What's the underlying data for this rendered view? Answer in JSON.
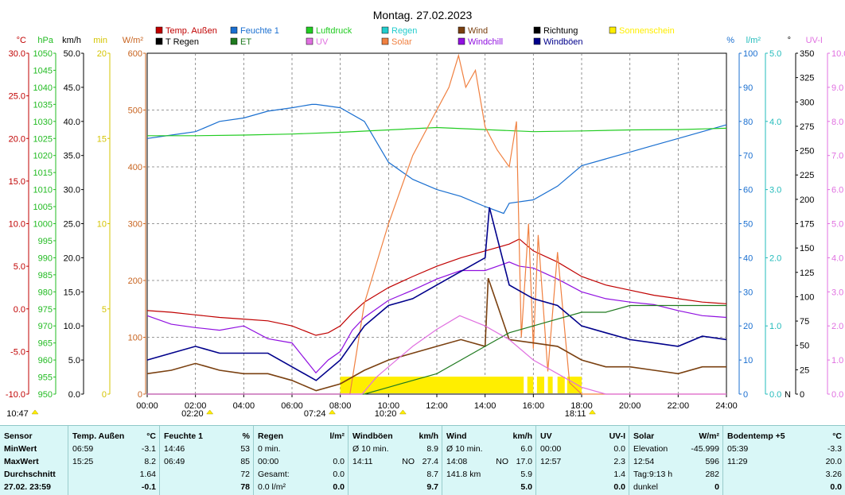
{
  "chart_data": {
    "type": "line",
    "title": "Montag. 27.02.2023",
    "x_ticks": [
      "00:00",
      "02:00",
      "04:00",
      "06:00",
      "08:00",
      "10:00",
      "12:00",
      "14:00",
      "16:00",
      "18:00",
      "20:00",
      "22:00",
      "24:00"
    ],
    "x_range": [
      0,
      24
    ],
    "legend": [
      {
        "label": "Temp. Außen",
        "color": "#c00000"
      },
      {
        "label": "Feuchte 1",
        "color": "#1a6fd0"
      },
      {
        "label": "Luftdruck",
        "color": "#22cc22"
      },
      {
        "label": "Regen",
        "color": "#22cccc"
      },
      {
        "label": "Wind",
        "color": "#7a4010"
      },
      {
        "label": "Richtung",
        "color": "#000000"
      },
      {
        "label": "Sonnenschein",
        "color": "#ffee00"
      },
      {
        "label": "T Regen",
        "color": "#000000"
      },
      {
        "label": "ET",
        "color": "#1f7a1f"
      },
      {
        "label": "UV",
        "color": "#e070e0"
      },
      {
        "label": "Solar",
        "color": "#f08040"
      },
      {
        "label": "Windchill",
        "color": "#9010e0"
      },
      {
        "label": "Windböen",
        "color": "#00008b"
      }
    ],
    "axes": [
      {
        "unit": "°C",
        "color": "#c00000",
        "side": "left",
        "ticks": [
          "30.0",
          "25.0",
          "20.0",
          "15.0",
          "10.0",
          "5.0",
          "0.0",
          "-5.0",
          "-10.0"
        ]
      },
      {
        "unit": "hPa",
        "color": "#22bb22",
        "side": "left",
        "ticks": [
          "1050",
          "1045",
          "1040",
          "1035",
          "1030",
          "1025",
          "1020",
          "1015",
          "1010",
          "1005",
          "1000",
          "995",
          "990",
          "985",
          "980",
          "975",
          "970",
          "965",
          "960",
          "955",
          "950"
        ]
      },
      {
        "unit": "km/h",
        "color": "#000000",
        "side": "left",
        "ticks": [
          "50.0",
          "45.0",
          "40.0",
          "35.0",
          "30.0",
          "25.0",
          "20.0",
          "15.0",
          "10.0",
          "5.0",
          "0.0"
        ]
      },
      {
        "unit": "min",
        "color": "#d4c400",
        "side": "left",
        "ticks": [
          "20",
          "15",
          "10",
          "5",
          "0"
        ]
      },
      {
        "unit": "W/m²",
        "color": "#c86420",
        "side": "left",
        "ticks": [
          "600",
          "500",
          "400",
          "300",
          "200",
          "100",
          "0"
        ]
      },
      {
        "unit": "%",
        "color": "#1a6fd0",
        "side": "right",
        "ticks": [
          "100",
          "90",
          "80",
          "70",
          "60",
          "50",
          "40",
          "30",
          "20",
          "10",
          "0"
        ]
      },
      {
        "unit": "l/m²",
        "color": "#22bbbb",
        "side": "right",
        "ticks": [
          "5.0",
          "4.0",
          "3.0",
          "2.0",
          "1.0",
          "0.0"
        ]
      },
      {
        "unit": "°",
        "color": "#000000",
        "side": "right",
        "ticks": [
          "350",
          "325",
          "300",
          "275",
          "250",
          "225",
          "200",
          "175",
          "150",
          "125",
          "100",
          "75",
          "50",
          "25",
          "0"
        ],
        "zero_label": "N"
      },
      {
        "unit": "UV-I",
        "color": "#e070e0",
        "side": "right",
        "ticks": [
          "10.0",
          "9.0",
          "8.0",
          "7.0",
          "6.0",
          "5.0",
          "4.0",
          "3.0",
          "2.0",
          "1.0",
          "0.0"
        ]
      }
    ],
    "series": [
      {
        "name": "Temp. Außen",
        "color": "#c00000",
        "x": [
          0,
          1,
          2,
          3,
          4,
          5,
          6,
          6.99,
          7.5,
          8,
          8.5,
          9,
          10,
          11,
          12,
          13,
          14,
          15,
          15.42,
          16,
          17,
          18,
          19,
          20,
          21,
          22,
          23,
          24
        ],
        "y": [
          -0.2,
          -0.4,
          -0.7,
          -1.0,
          -1.2,
          -1.4,
          -2.0,
          -3.1,
          -2.8,
          -2.0,
          -0.5,
          0.8,
          2.5,
          3.8,
          5.0,
          6.0,
          6.8,
          7.6,
          8.2,
          6.8,
          5.5,
          3.8,
          2.8,
          2.2,
          1.6,
          1.2,
          0.8,
          0.6
        ]
      },
      {
        "name": "Windchill",
        "color": "#9010e0",
        "x": [
          0,
          1,
          2,
          3,
          4,
          5,
          6,
          6.99,
          7.5,
          8,
          8.5,
          9,
          10,
          11,
          12,
          13,
          14,
          15,
          15.42,
          16,
          17,
          18,
          19,
          20,
          21,
          22,
          23,
          24
        ],
        "y": [
          -0.8,
          -1.8,
          -2.2,
          -2.5,
          -2.0,
          -3.5,
          -4.0,
          -7.5,
          -6.0,
          -5.0,
          -2.5,
          -1.0,
          1.0,
          2.2,
          3.5,
          4.5,
          4.5,
          5.5,
          5.0,
          4.8,
          3.5,
          2.0,
          1.2,
          0.8,
          0.5,
          -0.2,
          -0.8,
          -1.0
        ]
      },
      {
        "name": "Feuchte 1",
        "color": "#1a6fd0",
        "x": [
          0,
          1,
          2,
          3,
          4,
          5,
          6,
          6.82,
          7,
          8,
          9,
          10,
          11,
          12,
          13,
          14,
          14.77,
          15,
          16,
          17,
          18,
          19,
          20,
          21,
          22,
          23,
          24
        ],
        "y": [
          75,
          76,
          77,
          80,
          81,
          83,
          84,
          85,
          85,
          84,
          80,
          68,
          63,
          60,
          58,
          55,
          53,
          56,
          57,
          61,
          67,
          69,
          71,
          73,
          75,
          77,
          79
        ]
      },
      {
        "name": "Luftdruck",
        "color": "#22cc22",
        "x": [
          0,
          2,
          4,
          6,
          8,
          10,
          12,
          14,
          16,
          18,
          20,
          22,
          24
        ],
        "y": [
          1025.8,
          1025.8,
          1026.0,
          1026.3,
          1026.8,
          1027.5,
          1028.2,
          1027.6,
          1027.0,
          1027.2,
          1027.5,
          1027.6,
          1028.0
        ]
      },
      {
        "name": "Solar",
        "color": "#f08040",
        "x": [
          0,
          8.4,
          9,
          10,
          11,
          11.5,
          12,
          12.5,
          12.9,
          13.2,
          13.6,
          14,
          14.5,
          15,
          15.3,
          15.5,
          15.8,
          16,
          16.2,
          16.6,
          17,
          17.5,
          18,
          18.5,
          24
        ],
        "y": [
          0,
          0,
          160,
          300,
          420,
          460,
          500,
          540,
          596,
          540,
          570,
          470,
          430,
          400,
          480,
          100,
          300,
          80,
          280,
          40,
          250,
          20,
          0,
          0,
          0
        ]
      },
      {
        "name": "Wind",
        "color": "#7a4010",
        "x": [
          0,
          1,
          2,
          3,
          4,
          5,
          6,
          7,
          8,
          9,
          10,
          11,
          12,
          13,
          14,
          14.13,
          15,
          16,
          17,
          18,
          19,
          20,
          21,
          22,
          23,
          24
        ],
        "y": [
          3.0,
          3.5,
          4.5,
          3.5,
          3.0,
          3.0,
          2.0,
          0.5,
          1.5,
          3.5,
          5.0,
          6.0,
          7.0,
          8.0,
          7.0,
          17.0,
          8.0,
          7.5,
          7.0,
          5.0,
          4.0,
          4.0,
          3.5,
          3.0,
          4.0,
          4.0
        ]
      },
      {
        "name": "Windböen",
        "color": "#00008b",
        "x": [
          0,
          1,
          2,
          3,
          4,
          5,
          6,
          7,
          8,
          9,
          10,
          11,
          12,
          13,
          14,
          14.18,
          15,
          16,
          17,
          18,
          19,
          20,
          21,
          22,
          23,
          24
        ],
        "y": [
          5.0,
          6.0,
          7.0,
          6.0,
          6.0,
          6.0,
          4.0,
          2.0,
          5.0,
          10.0,
          13.0,
          14.0,
          16.0,
          18.0,
          20.0,
          27.4,
          16.0,
          14.0,
          13.0,
          10.0,
          9.0,
          8.0,
          7.5,
          7.0,
          8.5,
          8.0
        ]
      },
      {
        "name": "ET",
        "color": "#1f7a1f",
        "x": [
          0,
          9,
          10,
          11,
          12,
          13,
          14,
          15,
          16,
          17,
          18,
          19,
          20,
          21,
          22,
          23,
          24
        ],
        "y": [
          0.0,
          0.0,
          0.1,
          0.2,
          0.3,
          0.5,
          0.7,
          0.9,
          1.0,
          1.1,
          1.2,
          1.2,
          1.3,
          1.3,
          1.3,
          1.3,
          1.3
        ]
      },
      {
        "name": "UV",
        "color": "#e070e0",
        "x": [
          0,
          8.9,
          9.5,
          10,
          11,
          12,
          12.95,
          14,
          15,
          16,
          17,
          18,
          19,
          24
        ],
        "y": [
          0,
          0,
          0.5,
          0.8,
          1.4,
          1.9,
          2.3,
          2.0,
          1.6,
          1.0,
          0.6,
          0.2,
          0,
          0
        ]
      }
    ],
    "sunshine_blocks": [
      [
        8.0,
        15.6
      ],
      [
        15.75,
        16.0
      ],
      [
        16.15,
        16.45
      ],
      [
        16.6,
        16.8
      ],
      [
        17.0,
        17.3
      ],
      [
        17.4,
        18.0
      ]
    ],
    "markers": [
      {
        "label": "10:47",
        "time": 10.78
      },
      {
        "label": "02:20",
        "time": 2.33
      },
      {
        "label": "07:24",
        "time": 7.4
      },
      {
        "label": "10:20",
        "time": 10.33
      },
      {
        "label": "18:11",
        "time": 18.18
      }
    ]
  },
  "stats": {
    "sensor": {
      "header": "Sensor",
      "rows": [
        "MinWert",
        "MaxWert",
        "Durchschnitt",
        "27.02. 23:59"
      ]
    },
    "temp": {
      "header": "Temp. Außen",
      "unit": "°C",
      "rows": [
        [
          "06:59",
          "-3.1"
        ],
        [
          "15:25",
          "8.2"
        ],
        [
          "",
          "1.64"
        ],
        [
          "",
          "-0.1"
        ]
      ]
    },
    "feuchte": {
      "header": "Feuchte 1",
      "unit": "%",
      "rows": [
        [
          "14:46",
          "53"
        ],
        [
          "06:49",
          "85"
        ],
        [
          "",
          "72"
        ],
        [
          "",
          "78"
        ]
      ]
    },
    "regen": {
      "header": "Regen",
      "unit": "l/m²",
      "rows": [
        [
          "0 min.",
          ""
        ],
        [
          "00:00",
          "0.0"
        ],
        [
          "Gesamt:",
          "0.0"
        ],
        [
          "0.0 l/m²",
          "0.0"
        ]
      ]
    },
    "boeen": {
      "header": "Windböen",
      "unit": "km/h",
      "rows": [
        [
          "Ø 10 min.",
          "",
          "8.9"
        ],
        [
          "14:11",
          "NO",
          "27.4"
        ],
        [
          "",
          "",
          "8.7"
        ],
        [
          "",
          "",
          "9.7"
        ]
      ]
    },
    "wind": {
      "header": "Wind",
      "unit": "km/h",
      "rows": [
        [
          "Ø 10 min.",
          "",
          "6.0"
        ],
        [
          "14:08",
          "NO",
          "17.0"
        ],
        [
          "141.8 km",
          "",
          "5.9"
        ],
        [
          "",
          "",
          "5.0"
        ]
      ]
    },
    "uv": {
      "header": "UV",
      "unit": "UV-I",
      "rows": [
        [
          "00:00",
          "0.0"
        ],
        [
          "12:57",
          "2.3"
        ],
        [
          "",
          "1.4"
        ],
        [
          "",
          "0.0"
        ]
      ]
    },
    "solar": {
      "header": "Solar",
      "unit": "W/m²",
      "rows": [
        [
          "Elevation",
          "-45.999"
        ],
        [
          "12:54",
          "596"
        ],
        [
          "Tag:9:13 h",
          "282"
        ],
        [
          "dunkel",
          "0"
        ]
      ]
    },
    "boden": {
      "header": "Bodentemp +5",
      "unit": "°C",
      "rows": [
        [
          "05:39",
          "-3.3"
        ],
        [
          "11:29",
          "20.0"
        ],
        [
          "",
          "3.26"
        ],
        [
          "",
          "0.0"
        ]
      ]
    }
  }
}
